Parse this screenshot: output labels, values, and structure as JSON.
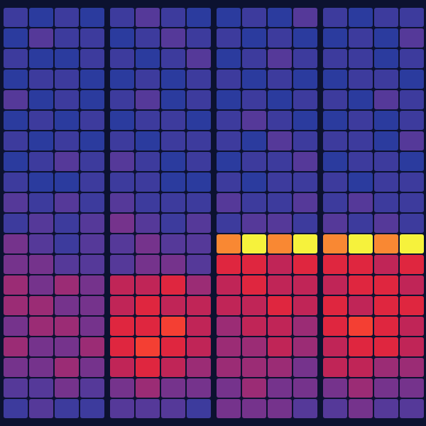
{
  "chart_data": {
    "type": "heatmap",
    "tick_labels": false,
    "cells": [
      [
        [
          1,
          0,
          1,
          0
        ],
        [
          0,
          2,
          1,
          1
        ],
        [
          1,
          0,
          0,
          1
        ],
        [
          0,
          1,
          1,
          0
        ],
        [
          2,
          0,
          1,
          0
        ],
        [
          0,
          1,
          0,
          1
        ],
        [
          1,
          0,
          1,
          0
        ],
        [
          0,
          1,
          2,
          1
        ],
        [
          1,
          0,
          0,
          1
        ],
        [
          2,
          1,
          2,
          1
        ],
        [
          1,
          2,
          1,
          2
        ],
        [
          3,
          2,
          1,
          2
        ],
        [
          3,
          3,
          2,
          2
        ],
        [
          4,
          3,
          4,
          3
        ],
        [
          4,
          4,
          3,
          3
        ],
        [
          3,
          4,
          4,
          3
        ],
        [
          4,
          3,
          3,
          4
        ],
        [
          3,
          3,
          4,
          3
        ],
        [
          2,
          2,
          3,
          2
        ],
        [
          1,
          2,
          1,
          1
        ]
      ],
      [
        [
          1,
          2,
          1,
          0
        ],
        [
          0,
          1,
          2,
          1
        ],
        [
          1,
          0,
          1,
          2
        ],
        [
          0,
          1,
          0,
          1
        ],
        [
          1,
          2,
          0,
          1
        ],
        [
          0,
          1,
          1,
          0
        ],
        [
          1,
          0,
          1,
          1
        ],
        [
          2,
          1,
          0,
          1
        ],
        [
          1,
          1,
          0,
          0
        ],
        [
          2,
          1,
          1,
          1
        ],
        [
          3,
          2,
          1,
          2
        ],
        [
          2,
          3,
          2,
          2
        ],
        [
          2,
          3,
          3,
          2
        ],
        [
          5,
          5,
          6,
          4
        ],
        [
          5,
          6,
          5,
          5
        ],
        [
          6,
          6,
          7,
          5
        ],
        [
          6,
          7,
          6,
          5
        ],
        [
          5,
          6,
          5,
          4
        ],
        [
          3,
          4,
          3,
          3
        ],
        [
          2,
          2,
          2,
          1
        ]
      ],
      [
        [
          0,
          1,
          0,
          2
        ],
        [
          1,
          0,
          1,
          0
        ],
        [
          0,
          1,
          2,
          1
        ],
        [
          1,
          0,
          1,
          0
        ],
        [
          0,
          1,
          0,
          1
        ],
        [
          1,
          2,
          1,
          0
        ],
        [
          1,
          0,
          2,
          1
        ],
        [
          0,
          1,
          1,
          2
        ],
        [
          1,
          0,
          1,
          1
        ],
        [
          2,
          1,
          1,
          2
        ],
        [
          1,
          2,
          2,
          1
        ],
        [
          8,
          9,
          8,
          9
        ],
        [
          6,
          6,
          5,
          6
        ],
        [
          5,
          6,
          5,
          5
        ],
        [
          5,
          5,
          6,
          5
        ],
        [
          4,
          5,
          5,
          4
        ],
        [
          4,
          4,
          5,
          4
        ],
        [
          4,
          4,
          4,
          3
        ],
        [
          3,
          4,
          3,
          3
        ],
        [
          3,
          3,
          3,
          2
        ]
      ],
      [
        [
          1,
          0,
          1,
          1
        ],
        [
          0,
          1,
          0,
          2
        ],
        [
          1,
          1,
          0,
          1
        ],
        [
          0,
          1,
          1,
          0
        ],
        [
          1,
          0,
          2,
          1
        ],
        [
          0,
          1,
          0,
          1
        ],
        [
          1,
          1,
          0,
          2
        ],
        [
          0,
          1,
          1,
          0
        ],
        [
          1,
          0,
          1,
          1
        ],
        [
          1,
          2,
          1,
          1
        ],
        [
          2,
          1,
          2,
          1
        ],
        [
          8,
          9,
          8,
          9
        ],
        [
          6,
          6,
          5,
          6
        ],
        [
          5,
          6,
          6,
          5
        ],
        [
          6,
          5,
          6,
          6
        ],
        [
          6,
          7,
          6,
          5
        ],
        [
          5,
          6,
          6,
          5
        ],
        [
          5,
          5,
          4,
          4
        ],
        [
          3,
          4,
          3,
          3
        ],
        [
          2,
          3,
          2,
          2
        ]
      ]
    ]
  }
}
